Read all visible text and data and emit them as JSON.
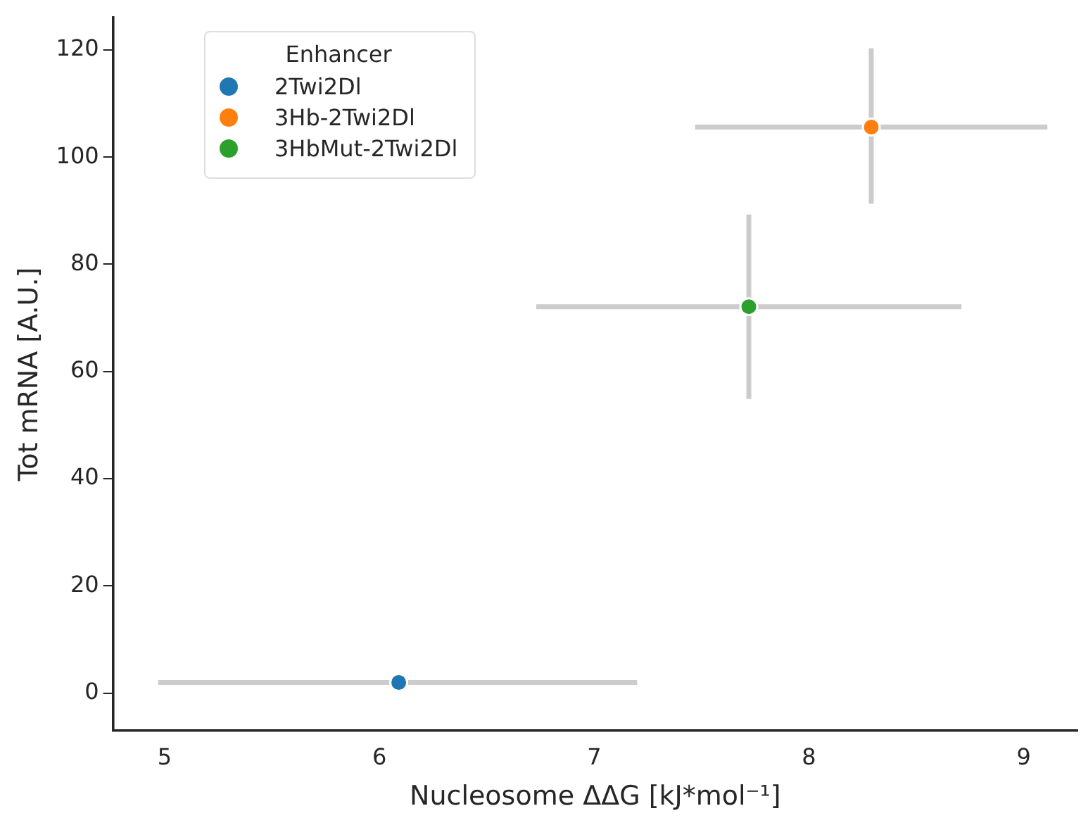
{
  "chart_data": {
    "type": "scatter",
    "xlabel": "Nucleosome ΔΔG [kJ*mol⁻¹]",
    "ylabel": "Tot mRNA [A.U.]",
    "legend_title": "Enhancer",
    "legend": "top left",
    "grid": false,
    "marker": "circle",
    "xlim": [
      4.76,
      9.25
    ],
    "xticks": [
      5,
      6,
      7,
      8,
      9
    ],
    "ylim": [
      -7,
      126
    ],
    "yticks": [
      0,
      20,
      40,
      60,
      80,
      100,
      120
    ],
    "series": [
      {
        "name": "2Twi2Dl",
        "color": "#1f77b4",
        "x": [
          6.09
        ],
        "values": [
          2
        ],
        "xerrors": [
          [
            4.97,
            7.2
          ]
        ],
        "errors": [
          null
        ]
      },
      {
        "name": "3Hb-2Twi2Dl",
        "color": "#ff7f0e",
        "x": [
          8.29
        ],
        "values": [
          105.6
        ],
        "xerrors": [
          [
            7.47,
            9.11
          ]
        ],
        "errors": [
          [
            91.3,
            120.3
          ]
        ]
      },
      {
        "name": "3HbMut-2Twi2Dl",
        "color": "#2ca02c",
        "x": [
          7.72
        ],
        "values": [
          72.1
        ],
        "xerrors": [
          [
            6.73,
            8.71
          ]
        ],
        "errors": [
          [
            54.9,
            89.3
          ]
        ]
      }
    ]
  }
}
